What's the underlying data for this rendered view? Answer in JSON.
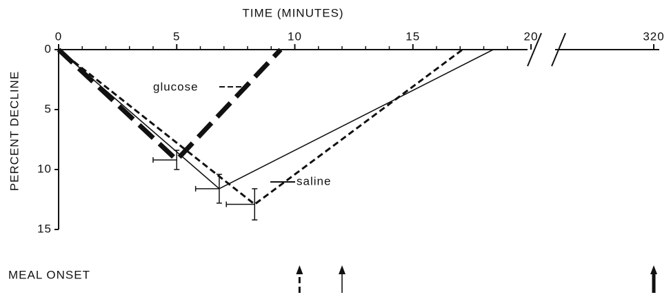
{
  "chart_data": {
    "type": "line",
    "xlabel": "TIME (MINUTES)",
    "ylabel": "PERCENT DECLINE",
    "xlim": [
      0,
      320
    ],
    "x_axis_break": true,
    "xticks": [
      0,
      5,
      10,
      15,
      20,
      320
    ],
    "ylim": [
      0,
      15
    ],
    "y_inverted": true,
    "yticks": [
      0,
      5,
      10,
      15
    ],
    "series": [
      {
        "color": "#111111",
        "line_style": "thick-dashed",
        "x": [
          0,
          5,
          9.4
        ],
        "values": [
          0,
          9.2,
          0
        ],
        "x_errors": [
          null,
          1.0,
          null
        ],
        "y_errors": [
          null,
          0.8,
          null
        ]
      },
      {
        "color": "#111111",
        "line_style": "solid",
        "x": [
          0,
          6.8,
          18.4
        ],
        "values": [
          0,
          11.6,
          0
        ],
        "x_errors": [
          null,
          1.0,
          null
        ],
        "y_errors": [
          null,
          1.2,
          null
        ]
      },
      {
        "color": "#111111",
        "line_style": "dashed",
        "x": [
          0,
          8.3,
          17.1
        ],
        "values": [
          0,
          12.9,
          0
        ],
        "x_errors": [
          null,
          1.2,
          null
        ],
        "y_errors": [
          null,
          1.3,
          null
        ]
      }
    ],
    "annotations": [
      "glucose",
      "saline"
    ],
    "meal_onset": {
      "label": "MEAL ONSET",
      "x": [
        10.2,
        12,
        320
      ],
      "styles": [
        "dashed",
        "solid",
        "thick-solid"
      ]
    }
  }
}
